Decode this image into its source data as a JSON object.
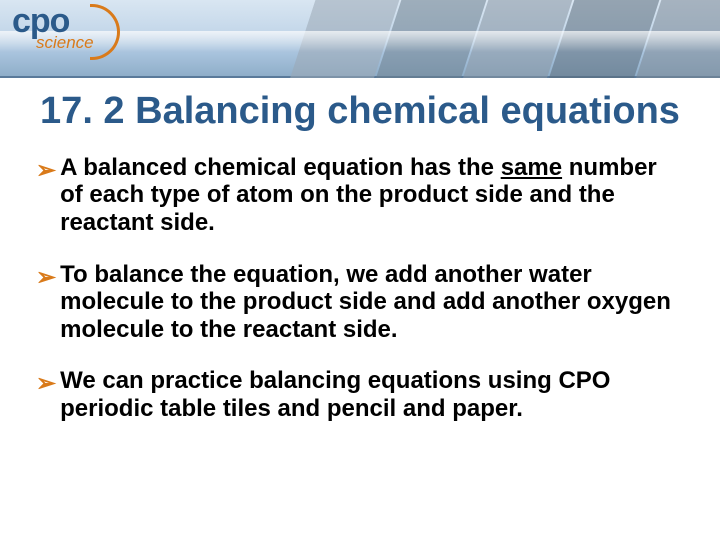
{
  "logo": {
    "brand_top": "cpo",
    "brand_bottom": "science",
    "brand_top_color": "#2b5a8a",
    "brand_bottom_color": "#d97a1a"
  },
  "title": {
    "text": "17. 2 Balancing chemical equations",
    "color": "#2b5a8a",
    "fontsize_pt": 29
  },
  "bullets": [
    {
      "pre": "A balanced chemical equation has the ",
      "underlined": "same",
      "post": " number of each type of atom on the product side and the reactant side."
    },
    {
      "pre": "To balance the equation, we add another water molecule to the product side and add another oxygen molecule to the reactant side.",
      "underlined": "",
      "post": ""
    },
    {
      "pre": "We can practice balancing equations using CPO periodic table tiles and pencil and paper.",
      "underlined": "",
      "post": ""
    }
  ],
  "style": {
    "bullet_arrow_glyph": "➢",
    "bullet_arrow_color": "#d97a1a",
    "body_text_color": "#000000",
    "body_fontsize_pt": 18,
    "background_color": "#ffffff",
    "header_gradient": [
      "#d9e6f2",
      "#8faec9"
    ]
  }
}
